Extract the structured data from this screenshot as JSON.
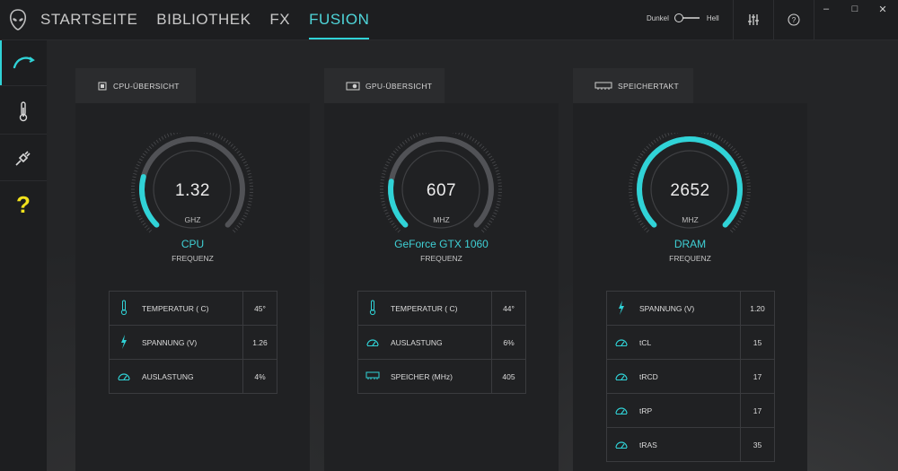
{
  "nav": {
    "items": [
      {
        "label": "STARTSEITE",
        "active": false
      },
      {
        "label": "BIBLIOTHEK",
        "active": false
      },
      {
        "label": "FX",
        "active": false
      },
      {
        "label": "FUSION",
        "active": true
      }
    ]
  },
  "theme": {
    "dark_label": "Dunkel",
    "light_label": "Hell"
  },
  "colors": {
    "accent": "#30d3d7",
    "help": "#f2e21c"
  },
  "sidebar": {
    "items": [
      {
        "icon": "performance-icon",
        "active": true
      },
      {
        "icon": "thermometer-icon",
        "active": false
      },
      {
        "icon": "power-plug-icon",
        "active": false
      },
      {
        "icon": "question-icon",
        "active": false
      }
    ],
    "help_glyph": "?"
  },
  "panels": [
    {
      "tab_label": "CPU-ÜBERSICHT",
      "gauge": {
        "value": "1.32",
        "unit": "GHZ",
        "name": "CPU",
        "sub": "FREQUENZ",
        "fill_fraction": 0.22
      },
      "rows": [
        {
          "icon": "thermometer-icon",
          "label": "TEMPERATUR ( C)",
          "value": "45°"
        },
        {
          "icon": "lightning-icon",
          "label": "SPANNUNG (V)",
          "value": "1.26"
        },
        {
          "icon": "gauge-icon",
          "label": "AUSLASTUNG",
          "value": "4%"
        }
      ]
    },
    {
      "tab_label": "GPU-ÜBERSICHT",
      "gauge": {
        "value": "607",
        "unit": "MHZ",
        "name": "GeForce GTX 1060",
        "sub": "FREQUENZ",
        "fill_fraction": 0.2
      },
      "rows": [
        {
          "icon": "thermometer-icon",
          "label": "TEMPERATUR ( C)",
          "value": "44°"
        },
        {
          "icon": "gauge-icon",
          "label": "AUSLASTUNG",
          "value": "6%"
        },
        {
          "icon": "memory-icon",
          "label": "SPEICHER (MHz)",
          "value": "405"
        }
      ]
    },
    {
      "tab_label": "SPEICHERTAKT",
      "gauge": {
        "value": "2652",
        "unit": "MHZ",
        "name": "DRAM",
        "sub": "FREQUENZ",
        "fill_fraction": 1.0
      },
      "rows": [
        {
          "icon": "lightning-icon",
          "label": "SPANNUNG (V)",
          "value": "1.20"
        },
        {
          "icon": "gauge-icon",
          "label": "tCL",
          "value": "15"
        },
        {
          "icon": "gauge-icon",
          "label": "tRCD",
          "value": "17"
        },
        {
          "icon": "gauge-icon",
          "label": "tRP",
          "value": "17"
        },
        {
          "icon": "gauge-icon",
          "label": "tRAS",
          "value": "35"
        }
      ]
    }
  ]
}
